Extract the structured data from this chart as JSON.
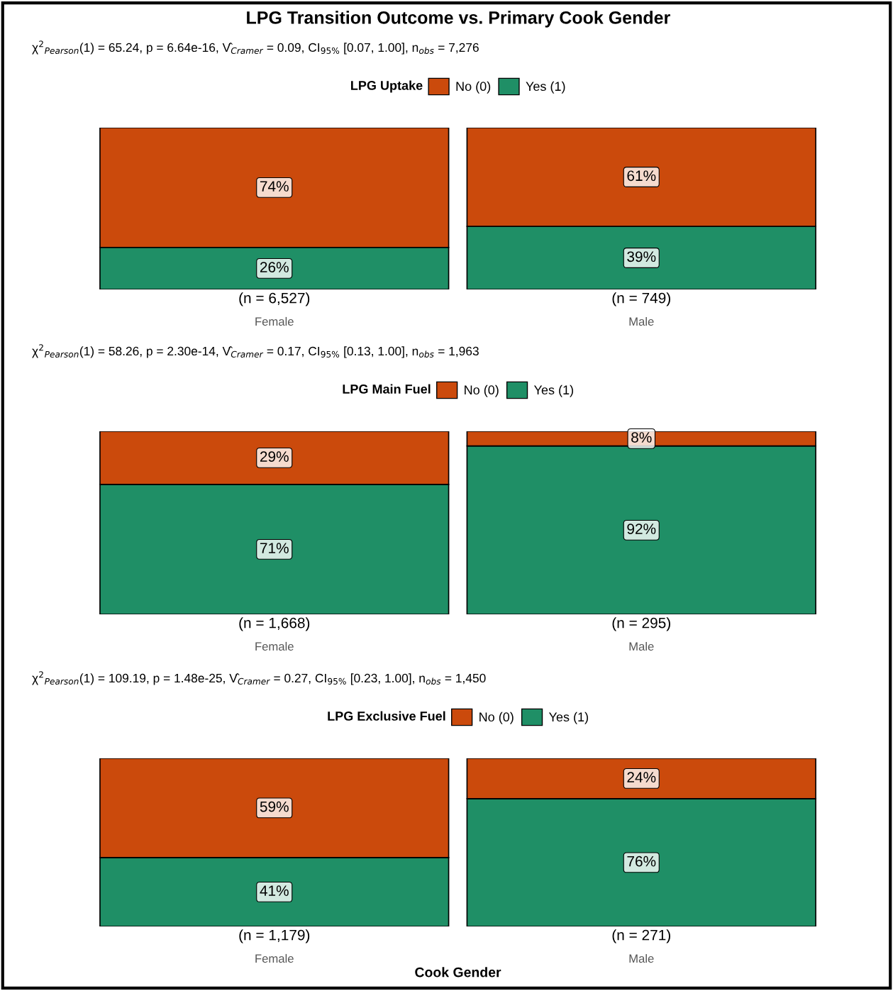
{
  "chart_data": [
    {
      "type": "bar",
      "title": "LPG Transition Outcome vs. Primary Cook Gender",
      "subtitle": "χ$^{2}$$_{Pearson}$(1) = 65.24, p = 6.64e-16, V̂$_{Cramer}$ = 0.09, CI$_{95%}$ [0.07, 1.00], n$_{obs}$ = 7,276",
      "legend_title": "LPG Uptake",
      "categories": [
        "Female",
        "Male"
      ],
      "stacked": true,
      "tick_labels": "x",
      "legend": "top",
      "data_labels": true,
      "series": [
        {
          "name": "Yes (1)",
          "color": "#1f8f66",
          "values": [
            26,
            39
          ],
          "value_labels": [
            "26%",
            "39%"
          ]
        },
        {
          "name": "No (0)",
          "color": "#cb4a0c",
          "values": [
            74,
            61
          ],
          "value_labels": [
            "74%",
            "61%"
          ]
        }
      ],
      "annotations": [
        "(n = 6,527)",
        "(n = 749)"
      ]
    },
    {
      "type": "bar",
      "subtitle": "χ$^{2}$$_{Pearson}$(1) = 58.26, p = 2.30e-14, V̂$_{Cramer}$ = 0.17, CI$_{95%}$ [0.13, 1.00], n$_{obs}$ = 1,963",
      "legend_title": "LPG Main Fuel",
      "categories": [
        "Female",
        "Male"
      ],
      "stacked": true,
      "tick_labels": "x",
      "legend": "top",
      "data_labels": true,
      "series": [
        {
          "name": "Yes (1)",
          "color": "#1f8f66",
          "values": [
            71,
            92
          ],
          "value_labels": [
            "71%",
            "92%"
          ]
        },
        {
          "name": "No (0)",
          "color": "#cb4a0c",
          "values": [
            29,
            8
          ],
          "value_labels": [
            "29%",
            "8%"
          ]
        }
      ],
      "annotations": [
        "(n = 1,668)",
        "(n = 295)"
      ]
    },
    {
      "type": "bar",
      "subtitle": "χ$^{2}$$_{Pearson}$(1) = 109.19, p = 1.48e-25, V̂$_{Cramer}$ = 0.27, CI$_{95%}$ [0.23, 1.00], n$_{obs}$ = 1,450",
      "legend_title": "LPG Exclusive Fuel",
      "xlabel": "Cook Gender",
      "categories": [
        "Female",
        "Male"
      ],
      "stacked": true,
      "tick_labels": "x",
      "legend": "top",
      "data_labels": true,
      "series": [
        {
          "name": "Yes (1)",
          "color": "#1f8f66",
          "values": [
            41,
            76
          ],
          "value_labels": [
            "41%",
            "76%"
          ]
        },
        {
          "name": "No (0)",
          "color": "#cb4a0c",
          "values": [
            59,
            24
          ],
          "value_labels": [
            "59%",
            "24%"
          ]
        }
      ],
      "annotations": [
        "(n = 1,179)",
        "(n = 271)"
      ]
    }
  ]
}
